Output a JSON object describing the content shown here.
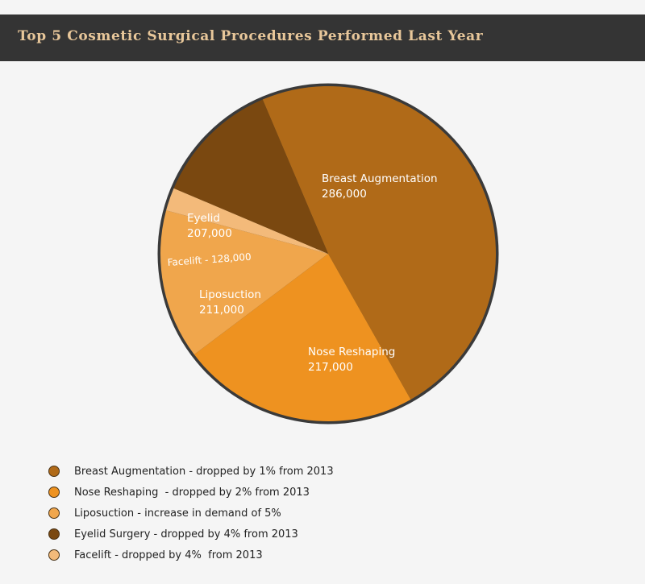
{
  "header": {
    "title": "Top 5 Cosmetic Surgical Procedures Performed Last Year"
  },
  "chart_data": {
    "type": "pie",
    "title": "Top 5 Cosmetic Surgical Procedures Performed Last Year",
    "slices": [
      {
        "label": "Breast Augmentation",
        "value_label": "286,000",
        "value": 286000,
        "color": "#b06a18"
      },
      {
        "label": "Nose Reshaping",
        "value_label": "217,000",
        "value": 217000,
        "color": "#ee9220"
      },
      {
        "label": "Liposuction",
        "value_label": "211,000",
        "value": 211000,
        "color": "#f0a64c"
      },
      {
        "label": "Facelift - 128,000",
        "value_label": "",
        "value": 128000,
        "color": "#f3ba7a"
      },
      {
        "label": "Eyelid",
        "value_label": "207,000",
        "value": 207000,
        "color": "#7a4810"
      }
    ],
    "border_color": "#3a3a3a"
  },
  "legend": [
    {
      "text": "Breast Augmentation - dropped by 1% from 2013",
      "color": "#b06a18"
    },
    {
      "text": "Nose Reshaping  - dropped by 2% from 2013",
      "color": "#ee9220"
    },
    {
      "text": "Liposuction - increase in demand of 5%",
      "color": "#f0a64c"
    },
    {
      "text": "Eyelid Surgery - dropped by 4% from 2013",
      "color": "#7a4810"
    },
    {
      "text": "Facelift - dropped by 4%  from 2013",
      "color": "#f3ba7a"
    }
  ]
}
